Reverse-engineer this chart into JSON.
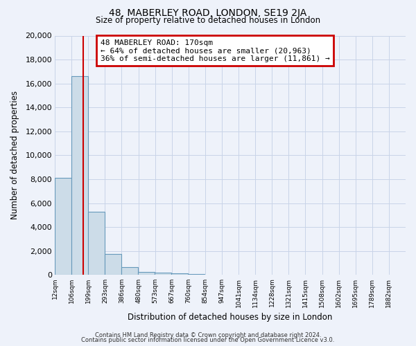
{
  "title": "48, MABERLEY ROAD, LONDON, SE19 2JA",
  "subtitle": "Size of property relative to detached houses in London",
  "xlabel": "Distribution of detached houses by size in London",
  "ylabel": "Number of detached properties",
  "bar_values": [
    8100,
    16600,
    5300,
    1750,
    650,
    275,
    175,
    125,
    100
  ],
  "bin_edges": [
    12,
    106,
    199,
    293,
    386,
    480,
    573,
    667,
    760,
    854
  ],
  "x_tick_labels": [
    "12sqm",
    "106sqm",
    "199sqm",
    "293sqm",
    "386sqm",
    "480sqm",
    "573sqm",
    "667sqm",
    "760sqm",
    "854sqm",
    "947sqm",
    "1041sqm",
    "1134sqm",
    "1228sqm",
    "1321sqm",
    "1415sqm",
    "1508sqm",
    "1602sqm",
    "1695sqm",
    "1789sqm",
    "1882sqm"
  ],
  "ylim": [
    0,
    20000
  ],
  "yticks": [
    0,
    2000,
    4000,
    6000,
    8000,
    10000,
    12000,
    14000,
    16000,
    18000,
    20000
  ],
  "bar_color": "#ccdce8",
  "bar_edge_color": "#6699bb",
  "red_line_x": 170,
  "annotation_title": "48 MABERLEY ROAD: 170sqm",
  "annotation_line1": "← 64% of detached houses are smaller (20,963)",
  "annotation_line2": "36% of semi-detached houses are larger (11,861) →",
  "annotation_box_color": "#ffffff",
  "annotation_box_edge": "#cc0000",
  "grid_color": "#c8d4e8",
  "background_color": "#eef2fa",
  "footer1": "Contains HM Land Registry data © Crown copyright and database right 2024.",
  "footer2": "Contains public sector information licensed under the Open Government Licence v3.0."
}
